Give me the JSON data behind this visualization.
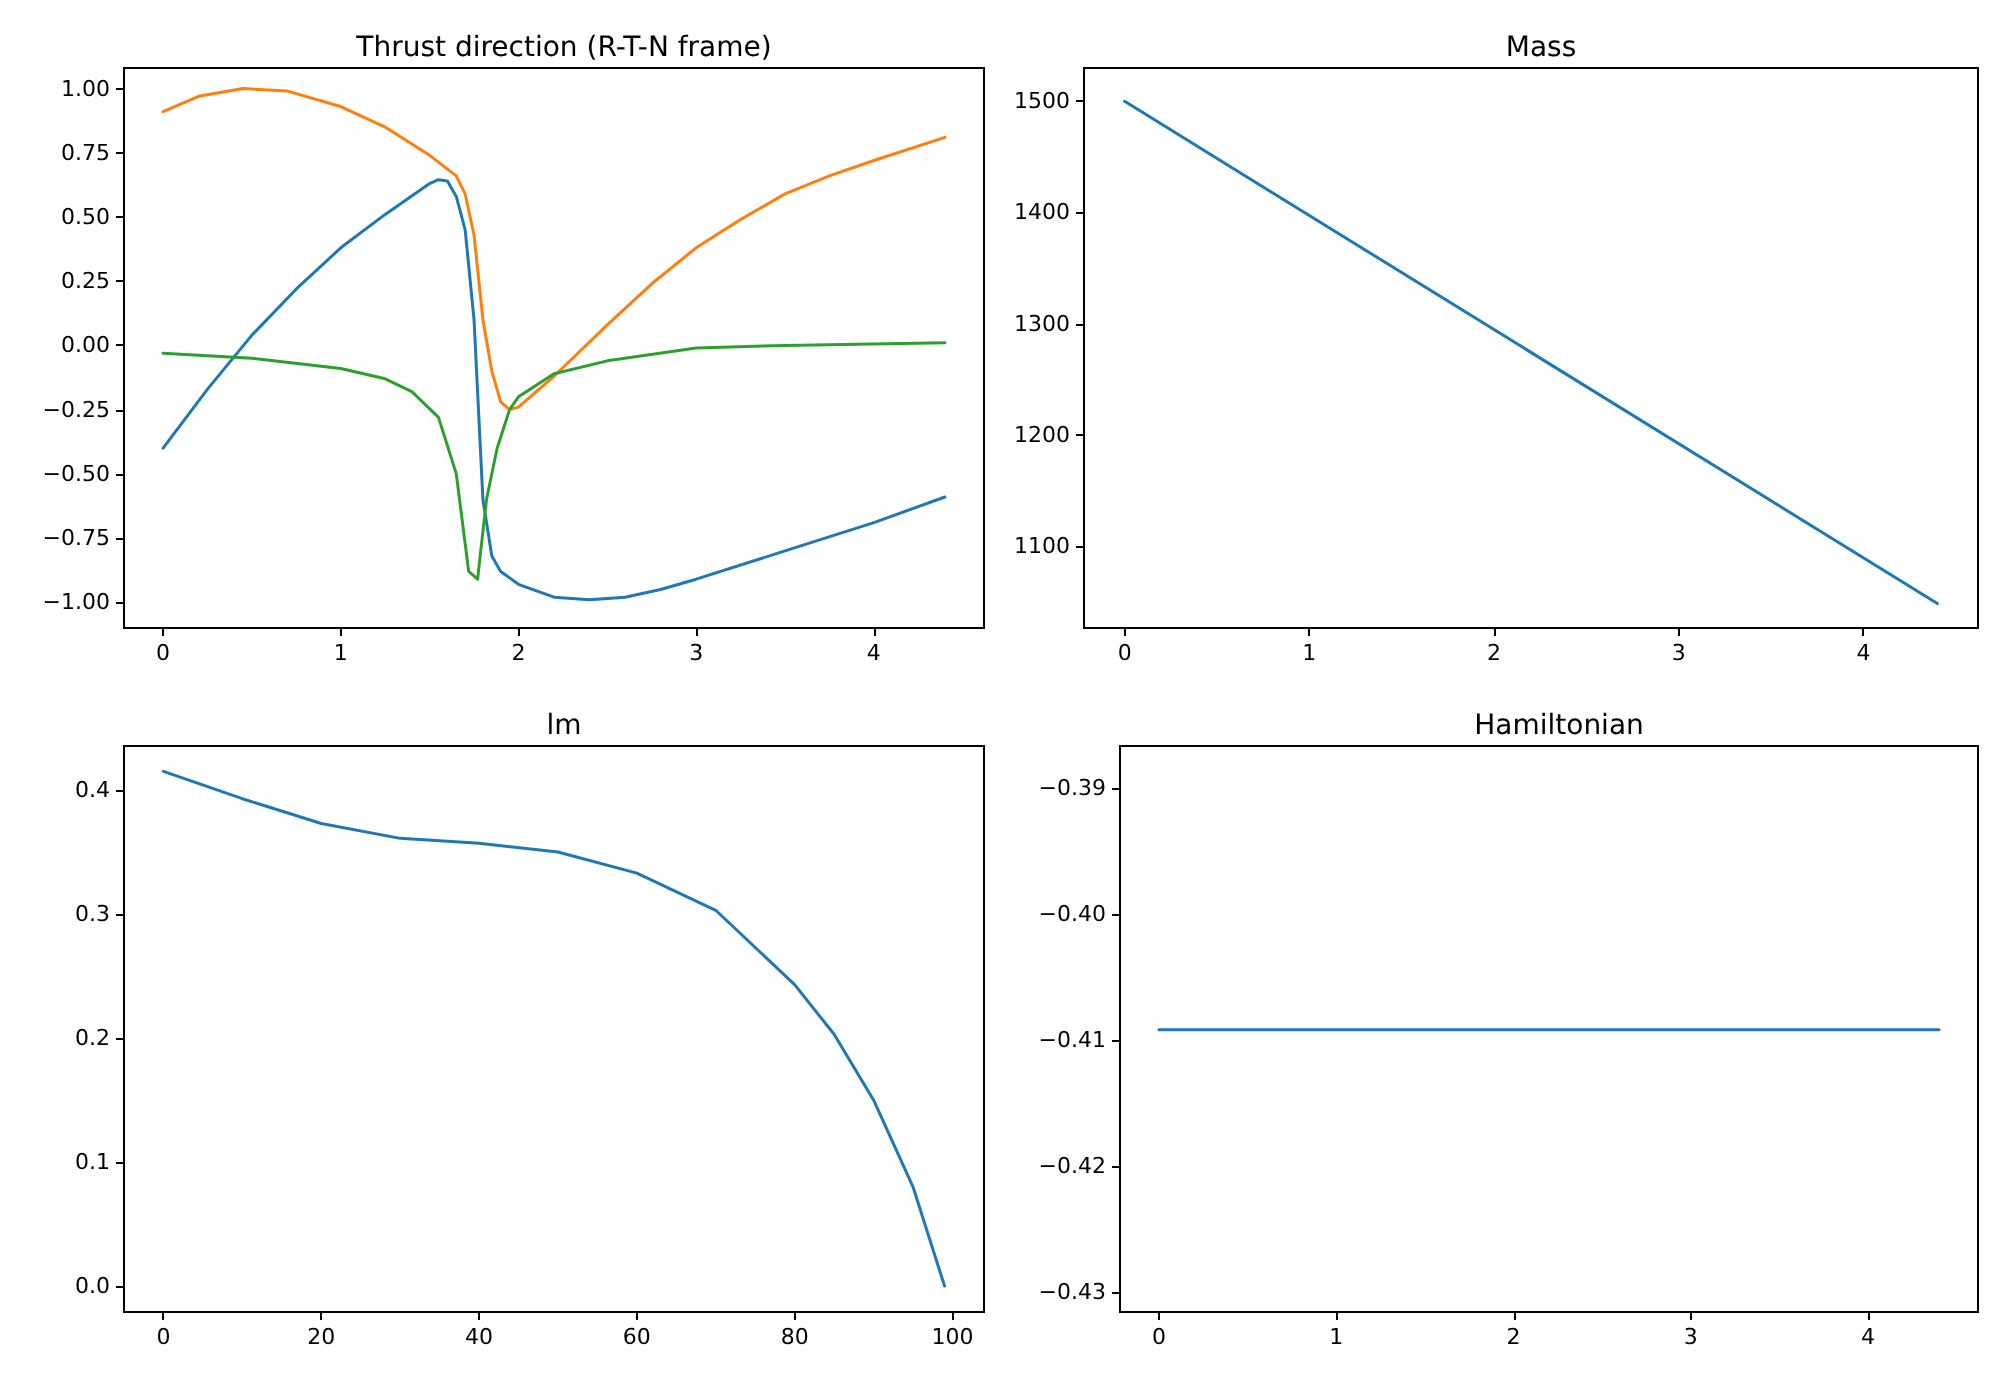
{
  "chart_data": [
    {
      "type": "line",
      "title": "Thrust direction (R-T-N frame)",
      "xlim": [
        -0.22,
        4.62
      ],
      "ylim": [
        -1.1,
        1.08
      ],
      "xticks": [
        0,
        1,
        2,
        3,
        4
      ],
      "yticks": [
        {
          "value": -1,
          "label": "−1.00"
        },
        {
          "value": -0.75,
          "label": "−0.75"
        },
        {
          "value": -0.5,
          "label": "−0.50"
        },
        {
          "value": -0.25,
          "label": "−0.25"
        },
        {
          "value": 0,
          "label": "0.00"
        },
        {
          "value": 0.25,
          "label": "0.25"
        },
        {
          "value": 0.5,
          "label": "0.50"
        },
        {
          "value": 0.75,
          "label": "0.75"
        },
        {
          "value": 1,
          "label": "1.00"
        }
      ],
      "marker": "none",
      "line_style": "solid",
      "series": [
        {
          "color": "#1f77b4",
          "x": [
            0,
            0.25,
            0.5,
            0.75,
            1,
            1.25,
            1.5,
            1.55,
            1.6,
            1.65,
            1.7,
            1.75,
            1.8,
            1.85,
            1.9,
            2,
            2.2,
            2.4,
            2.6,
            2.8,
            3,
            3.5,
            4,
            4.4
          ],
          "values": [
            -0.4,
            -0.17,
            0.04,
            0.22,
            0.38,
            0.51,
            0.63,
            0.645,
            0.64,
            0.58,
            0.45,
            0.1,
            -0.6,
            -0.82,
            -0.88,
            -0.93,
            -0.98,
            -0.99,
            -0.98,
            -0.95,
            -0.91,
            -0.8,
            -0.69,
            -0.59
          ]
        },
        {
          "color": "#ff7f0e",
          "x": [
            0,
            0.2,
            0.45,
            0.7,
            1,
            1.25,
            1.5,
            1.65,
            1.7,
            1.75,
            1.8,
            1.85,
            1.9,
            1.95,
            2,
            2.2,
            2.5,
            2.75,
            3,
            3.25,
            3.5,
            3.75,
            4,
            4.4
          ],
          "values": [
            0.91,
            0.97,
            1,
            0.99,
            0.93,
            0.85,
            0.74,
            0.66,
            0.59,
            0.43,
            0.1,
            -0.1,
            -0.22,
            -0.25,
            -0.24,
            -0.12,
            0.08,
            0.24,
            0.38,
            0.49,
            0.59,
            0.66,
            0.72,
            0.81
          ]
        },
        {
          "color": "#2ca02c",
          "x": [
            0,
            0.5,
            1,
            1.25,
            1.4,
            1.55,
            1.65,
            1.72,
            1.77,
            1.82,
            1.88,
            1.95,
            2,
            2.2,
            2.5,
            3,
            3.5,
            4.4
          ],
          "values": [
            -0.03,
            -0.05,
            -0.09,
            -0.13,
            -0.18,
            -0.28,
            -0.5,
            -0.88,
            -0.91,
            -0.6,
            -0.4,
            -0.25,
            -0.2,
            -0.11,
            -0.06,
            -0.01,
            0,
            0.01
          ]
        }
      ]
    },
    {
      "type": "line",
      "title": "Mass",
      "xlim": [
        -0.22,
        4.62
      ],
      "ylim": [
        1026,
        1530
      ],
      "xticks": [
        0,
        1,
        2,
        3,
        4
      ],
      "yticks": [
        1100,
        1200,
        1300,
        1400,
        1500
      ],
      "marker": "none",
      "line_style": "solid",
      "series": [
        {
          "color": "#1f77b4",
          "x": [
            0,
            4.4
          ],
          "values": [
            1500,
            1048
          ]
        }
      ]
    },
    {
      "type": "line",
      "title": "lm",
      "xlim": [
        -5,
        104
      ],
      "ylim": [
        -0.021,
        0.4355
      ],
      "xticks": [
        0,
        20,
        40,
        60,
        80,
        100
      ],
      "yticks": [
        {
          "value": 0,
          "label": "0.0"
        },
        {
          "value": 0.1,
          "label": "0.1"
        },
        {
          "value": 0.2,
          "label": "0.2"
        },
        {
          "value": 0.3,
          "label": "0.3"
        },
        {
          "value": 0.4,
          "label": "0.4"
        }
      ],
      "marker": "none",
      "line_style": "solid",
      "series": [
        {
          "color": "#1f77b4",
          "x": [
            0,
            10,
            20,
            30,
            40,
            50,
            60,
            70,
            80,
            85,
            90,
            95,
            99
          ],
          "values": [
            0.415,
            0.393,
            0.373,
            0.361,
            0.357,
            0.35,
            0.333,
            0.303,
            0.243,
            0.203,
            0.15,
            0.08,
            0
          ]
        }
      ]
    },
    {
      "type": "line",
      "title": "Hamiltonian",
      "xlim": [
        -0.22,
        4.62
      ],
      "ylim": [
        -0.4316,
        -0.3867
      ],
      "xticks": [
        0,
        1,
        2,
        3,
        4
      ],
      "yticks": [
        {
          "value": -0.43,
          "label": "−0.43"
        },
        {
          "value": -0.42,
          "label": "−0.42"
        },
        {
          "value": -0.41,
          "label": "−0.41"
        },
        {
          "value": -0.4,
          "label": "−0.40"
        },
        {
          "value": -0.39,
          "label": "−0.39"
        }
      ],
      "marker": "none",
      "line_style": "solid",
      "series": [
        {
          "color": "#1f77b4",
          "x": [
            0,
            4.4
          ],
          "values": [
            -0.4092,
            -0.4092
          ]
        }
      ]
    }
  ]
}
